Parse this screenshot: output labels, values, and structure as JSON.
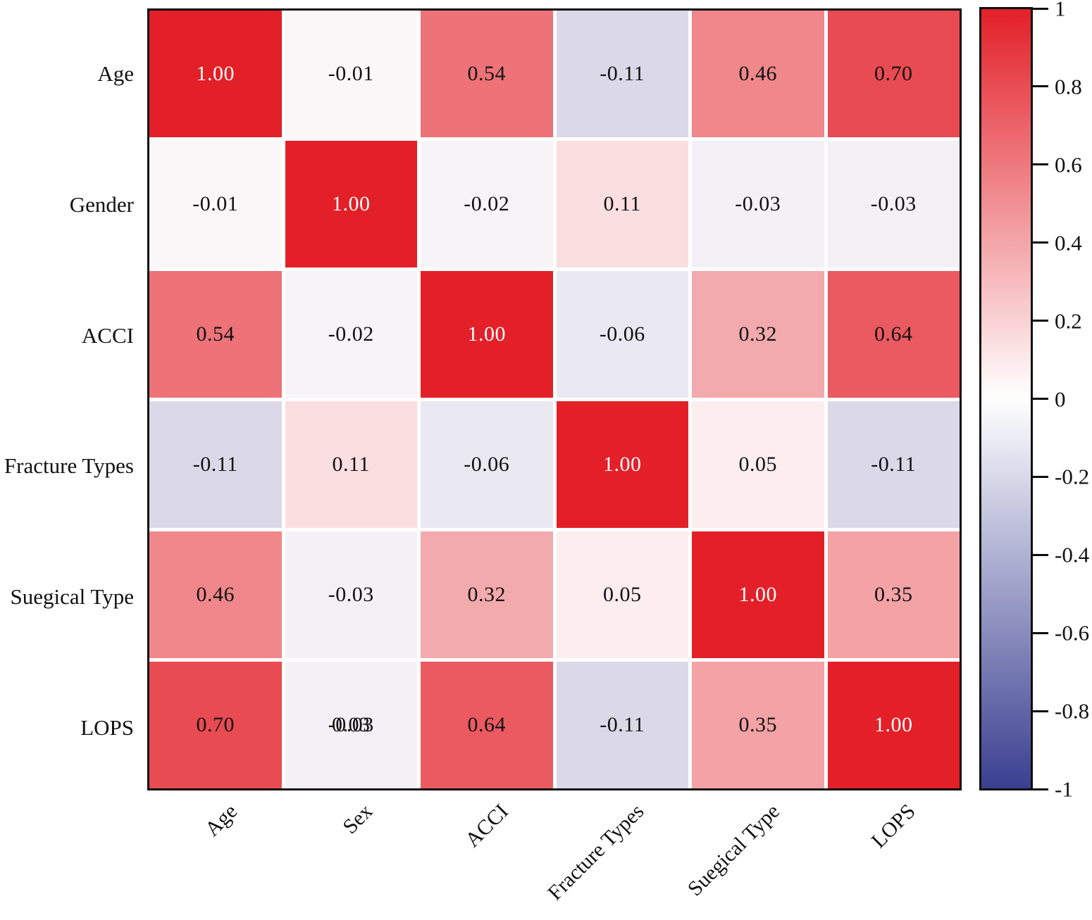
{
  "figure": {
    "background": "#ffffff",
    "frame_color": "#0d0d0d",
    "grid_gap_color": "#ffffff"
  },
  "chart_data": {
    "type": "heatmap",
    "title": "",
    "row_labels": [
      "Age",
      "Gender",
      "ACCI",
      "Fracture Types",
      "Suegical Type",
      "LOPS"
    ],
    "col_labels": [
      "Age",
      "Sex",
      "ACCI",
      "Fracture Types",
      "Suegical Type",
      "LOPS"
    ],
    "matrix": [
      [
        1.0,
        -0.01,
        0.54,
        -0.11,
        0.46,
        0.7
      ],
      [
        -0.01,
        1.0,
        -0.02,
        0.11,
        -0.03,
        -0.03
      ],
      [
        0.54,
        -0.02,
        1.0,
        -0.06,
        0.32,
        0.64
      ],
      [
        -0.11,
        0.11,
        -0.06,
        1.0,
        0.05,
        -0.11
      ],
      [
        0.46,
        -0.03,
        0.32,
        0.05,
        1.0,
        0.35
      ],
      [
        0.7,
        -0.03,
        0.64,
        -0.11,
        0.35,
        1.0
      ]
    ],
    "cell_text": [
      [
        "1.00",
        "-0.01",
        "0.54",
        "-0.11",
        "0.46",
        "0.70"
      ],
      [
        "-0.01",
        "1.00",
        "-0.02",
        "0.11",
        "-0.03",
        "-0.03"
      ],
      [
        "0.54",
        "-0.02",
        "1.00",
        "-0.06",
        "0.32",
        "0.64"
      ],
      [
        "-0.11",
        "0.11",
        "-0.06",
        "1.00",
        "0.05",
        "-0.11"
      ],
      [
        "0.46",
        "-0.03",
        "0.32",
        "0.05",
        "1.00",
        "0.35"
      ],
      [
        "0.70",
        "-0.03",
        "0.64",
        "-0.11",
        "0.35",
        "1.00"
      ]
    ],
    "overlap_artifact": {
      "row_index": 5,
      "col_index": 1,
      "text": "0.03"
    },
    "colorbar": {
      "position": "right",
      "vmin": -1,
      "vmax": 1,
      "tick_labels": [
        "1",
        "0.8",
        "0.6",
        "0.4",
        "0.2",
        "0",
        "-0.2",
        "-0.4",
        "-0.6",
        "-0.8",
        "-1"
      ],
      "tick_values": [
        1,
        0.8,
        0.6,
        0.4,
        0.2,
        0,
        -0.2,
        -0.4,
        -0.6,
        -0.8,
        -1
      ]
    },
    "colors": {
      "positive_max": "#e32028",
      "negative_max": "#3a3f90",
      "near_zero": "#fdfafb",
      "bar_zero": "#ffffff",
      "diagonal_text": "#ffffff",
      "cell_text": "#111111"
    },
    "x_tick_rotation_deg": 45,
    "grid": false,
    "legend": false
  }
}
